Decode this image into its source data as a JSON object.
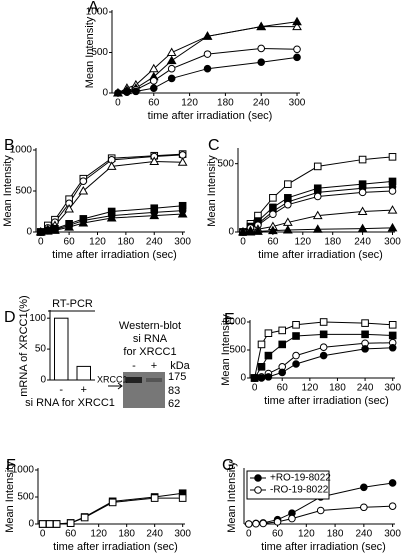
{
  "chart_data": [
    {
      "type": "line",
      "label": "A",
      "ylabel": "Mean Intensity",
      "xlabel": "time after irradiation (sec)",
      "x": [
        0,
        15,
        30,
        60,
        90,
        150,
        240,
        300
      ],
      "xlim": [
        -10,
        305
      ],
      "xticks": [
        0,
        60,
        120,
        180,
        240,
        300
      ],
      "ylim": [
        0,
        1000
      ],
      "yticks": [
        0,
        500,
        1000
      ],
      "series": [
        {
          "marker": "triangle",
          "filled": false,
          "color": "#000000",
          "values": [
            0,
            60,
            100,
            300,
            500,
            700,
            820,
            820
          ]
        },
        {
          "marker": "triangle",
          "filled": true,
          "color": "#000000",
          "values": [
            0,
            30,
            60,
            200,
            400,
            700,
            820,
            880
          ]
        },
        {
          "marker": "circle",
          "filled": false,
          "color": "#000000",
          "values": [
            0,
            20,
            40,
            150,
            300,
            480,
            550,
            540
          ]
        },
        {
          "marker": "circle",
          "filled": true,
          "color": "#000000",
          "values": [
            0,
            10,
            20,
            60,
            180,
            300,
            380,
            440
          ]
        }
      ]
    },
    {
      "type": "line",
      "label": "B",
      "ylabel": "Mean Intensity",
      "xlabel": "time after irradiation (sec)",
      "x": [
        0,
        15,
        30,
        60,
        90,
        150,
        240,
        300
      ],
      "xlim": [
        -10,
        305
      ],
      "xticks": [
        0,
        60,
        120,
        180,
        240,
        300
      ],
      "ylim": [
        0,
        1000
      ],
      "yticks": [
        0,
        500,
        1000
      ],
      "series": [
        {
          "marker": "square",
          "filled": false,
          "color": "#000000",
          "values": [
            0,
            80,
            150,
            400,
            650,
            900,
            930,
            950
          ]
        },
        {
          "marker": "circle",
          "filled": false,
          "color": "#000000",
          "values": [
            0,
            50,
            120,
            350,
            620,
            880,
            920,
            940
          ]
        },
        {
          "marker": "triangle",
          "filled": false,
          "color": "#000000",
          "values": [
            0,
            30,
            80,
            280,
            500,
            800,
            860,
            850
          ]
        },
        {
          "marker": "square",
          "filled": true,
          "color": "#000000",
          "values": [
            0,
            20,
            40,
            100,
            160,
            250,
            290,
            320
          ]
        },
        {
          "marker": "circle",
          "filled": true,
          "color": "#000000",
          "values": [
            0,
            15,
            30,
            80,
            140,
            200,
            240,
            260
          ]
        },
        {
          "marker": "triangle",
          "filled": true,
          "color": "#000000",
          "values": [
            0,
            10,
            20,
            60,
            110,
            170,
            200,
            220
          ]
        }
      ]
    },
    {
      "type": "line",
      "label": "C",
      "ylabel": "Mean Intensity",
      "xlabel": "time after irradiation (sec)",
      "x": [
        0,
        15,
        30,
        60,
        90,
        150,
        240,
        300
      ],
      "xlim": [
        -10,
        305
      ],
      "xticks": [
        0,
        60,
        120,
        180,
        240,
        300
      ],
      "ylim": [
        0,
        600
      ],
      "yticks": [
        0,
        500
      ],
      "series": [
        {
          "marker": "square",
          "filled": false,
          "color": "#000000",
          "values": [
            0,
            60,
            120,
            250,
            350,
            480,
            530,
            550
          ]
        },
        {
          "marker": "square",
          "filled": true,
          "color": "#000000",
          "values": [
            0,
            40,
            80,
            180,
            250,
            320,
            350,
            370
          ]
        },
        {
          "marker": "circle",
          "filled": true,
          "color": "#000000",
          "values": [
            0,
            30,
            60,
            150,
            220,
            290,
            320,
            330
          ]
        },
        {
          "marker": "circle",
          "filled": false,
          "color": "#000000",
          "values": [
            0,
            30,
            50,
            130,
            200,
            260,
            290,
            300
          ]
        },
        {
          "marker": "triangle",
          "filled": false,
          "color": "#000000",
          "values": [
            0,
            10,
            20,
            40,
            70,
            120,
            150,
            160
          ]
        },
        {
          "marker": "triangle",
          "filled": true,
          "color": "#000000",
          "values": [
            0,
            0,
            5,
            10,
            15,
            20,
            25,
            30
          ]
        }
      ]
    },
    {
      "type": "bar",
      "label": "D",
      "title": "RT-PCR",
      "ylabel": "mRNA of XRCC1(%)",
      "xlabel": "si RNA for XRCC1",
      "categories": [
        "-",
        "+"
      ],
      "values": [
        100,
        22
      ],
      "color": "#ffffff",
      "ylim": [
        0,
        110
      ],
      "yticks": [
        0,
        50,
        100
      ]
    },
    {
      "type": "line",
      "label": "E",
      "ylabel": "Mean Intensity",
      "xlabel": "time after irradiation (sec)",
      "x": [
        0,
        15,
        30,
        60,
        90,
        150,
        240,
        300
      ],
      "xlim": [
        -10,
        305
      ],
      "xticks": [
        0,
        60,
        120,
        180,
        240,
        300
      ],
      "ylim": [
        0,
        1000
      ],
      "yticks": [
        0,
        500,
        1000
      ],
      "series": [
        {
          "marker": "square",
          "filled": false,
          "color": "#000000",
          "values": [
            0,
            600,
            800,
            850,
            950,
            1000,
            980,
            950
          ]
        },
        {
          "marker": "square",
          "filled": true,
          "color": "#000000",
          "values": [
            0,
            200,
            400,
            600,
            750,
            780,
            780,
            760
          ]
        },
        {
          "marker": "circle",
          "filled": false,
          "color": "#000000",
          "values": [
            0,
            20,
            80,
            200,
            400,
            550,
            620,
            630
          ]
        },
        {
          "marker": "circle",
          "filled": true,
          "color": "#000000",
          "values": [
            0,
            0,
            20,
            100,
            250,
            400,
            520,
            540
          ]
        }
      ]
    },
    {
      "type": "line",
      "label": "F",
      "ylabel": "Mean Intensity",
      "xlabel": "time after irradiation (sec)",
      "x": [
        0,
        15,
        30,
        60,
        90,
        150,
        240,
        300
      ],
      "xlim": [
        -10,
        305
      ],
      "xticks": [
        0,
        60,
        120,
        180,
        240,
        300
      ],
      "ylim": [
        0,
        1000
      ],
      "yticks": [
        0,
        500,
        1000
      ],
      "series": [
        {
          "marker": "square",
          "filled": true,
          "color": "#000000",
          "values": [
            0,
            0,
            0,
            20,
            130,
            420,
            500,
            570
          ]
        },
        {
          "marker": "square",
          "filled": false,
          "color": "#000000",
          "values": [
            0,
            0,
            0,
            15,
            120,
            400,
            480,
            480
          ]
        }
      ]
    },
    {
      "type": "line",
      "label": "G",
      "ylabel": "Mean Intensity",
      "xlabel": "time after irradiation (sec)",
      "x": [
        0,
        15,
        30,
        60,
        90,
        150,
        240,
        300
      ],
      "xlim": [
        -10,
        305
      ],
      "xticks": [
        0,
        60,
        120,
        180,
        240,
        300
      ],
      "ylim": [
        0,
        1000
      ],
      "yticks": [],
      "legend": "upper left",
      "series": [
        {
          "name": "+RO-19-8022",
          "marker": "circle",
          "filled": true,
          "color": "#000000",
          "values": [
            0,
            10,
            20,
            80,
            200,
            500,
            680,
            760
          ]
        },
        {
          "name": "-RO-19-8022",
          "marker": "circle",
          "filled": false,
          "color": "#000000",
          "values": [
            0,
            5,
            10,
            40,
            100,
            250,
            310,
            330
          ]
        }
      ]
    }
  ],
  "western_blot": {
    "title": "Western-blot",
    "line2": "si RNA",
    "line3": "for XRCC1",
    "lanes": [
      "-",
      "+"
    ],
    "unit": "kDa",
    "markers": [
      "175",
      "83",
      "62"
    ],
    "band_label": "XRCC1"
  }
}
